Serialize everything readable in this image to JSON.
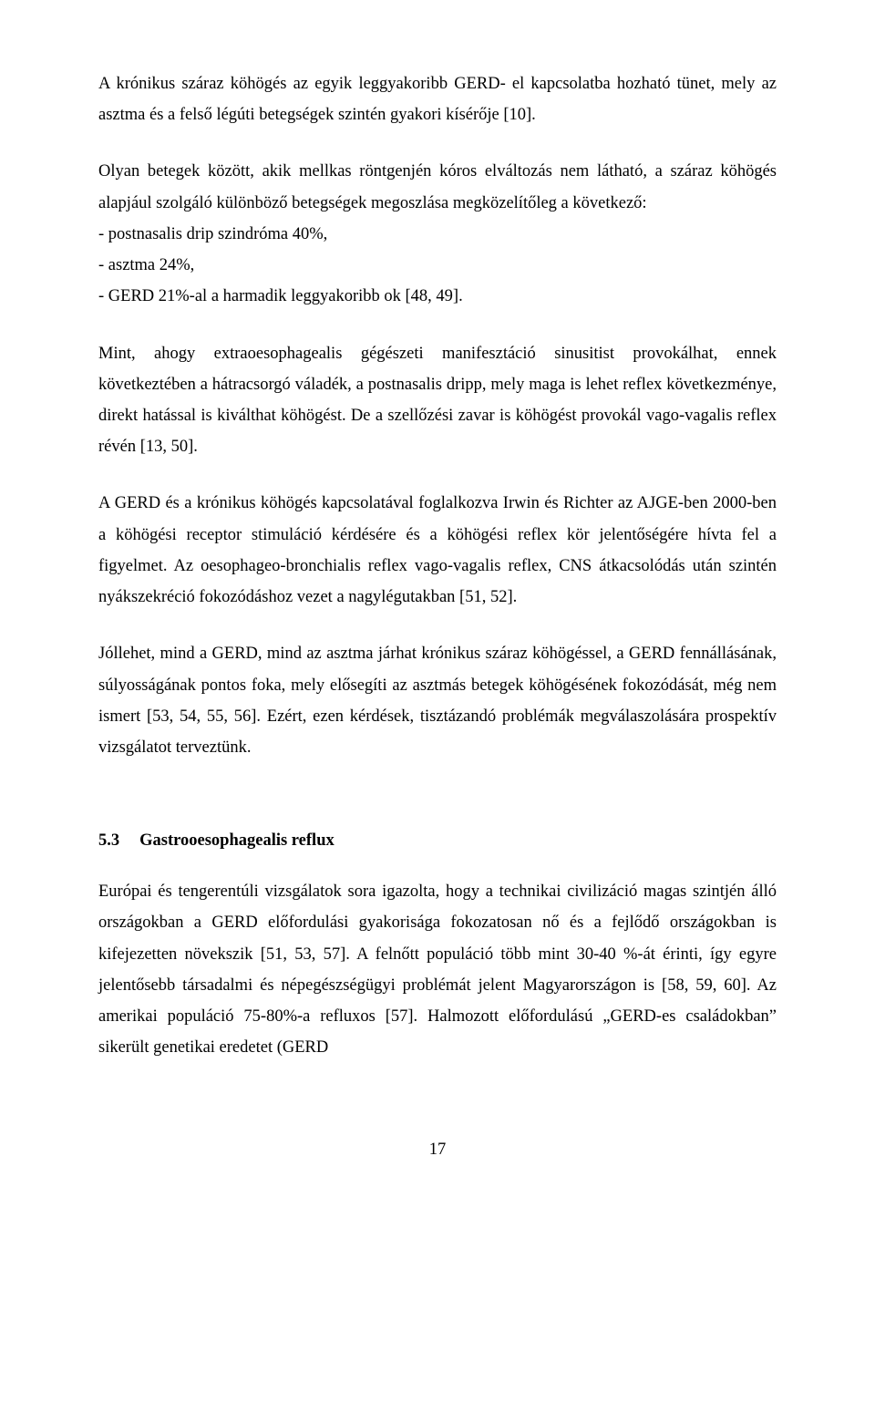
{
  "paragraphs": {
    "p1": "A krónikus száraz köhögés az egyik leggyakoribb GERD- el kapcsolatba hozható tünet, mely az asztma és a felső légúti betegségek szintén gyakori kísérője [10].",
    "list_intro": "Olyan betegek között, akik mellkas röntgenjén kóros elváltozás nem látható, a száraz köhögés alapjául szolgáló különböző betegségek megoszlása megközelítőleg a következő:",
    "list_items": [
      "- postnasalis drip szindróma 40%,",
      "- asztma 24%,",
      "- GERD 21%-al a harmadik leggyakoribb ok [48, 49]."
    ],
    "p2": "Mint, ahogy extraoesophagealis gégészeti manifesztáció sinusitist provokálhat, ennek következtében a hátracsorgó váladék, a postnasalis dripp, mely maga is lehet reflex következménye, direkt hatással is kiválthat köhögést. De a szellőzési zavar is köhögést provokál vago-vagalis reflex révén [13, 50].",
    "p3": "A GERD és a krónikus köhögés kapcsolatával foglalkozva Irwin és Richter az AJGE-ben 2000-ben a köhögési receptor stimuláció kérdésére és a köhögési reflex kör jelentőségére hívta fel a figyelmet. Az oesophageo-bronchialis reflex vago-vagalis reflex, CNS átkacsolódás után szintén nyákszekréció fokozódáshoz vezet a nagylégutakban [51, 52].",
    "p4": "Jóllehet, mind a GERD, mind az asztma járhat krónikus száraz köhögéssel, a GERD fennállásának, súlyosságának pontos foka, mely elősegíti az asztmás betegek köhögésének fokozódását, még nem ismert [53, 54, 55, 56]. Ezért, ezen kérdések, tisztázandó problémák megválaszolására prospektív vizsgálatot terveztünk.",
    "p5": "Európai és tengerentúli vizsgálatok sora igazolta, hogy a technikai civilizáció magas szintjén álló országokban a GERD előfordulási gyakorisága fokozatosan nő és a fejlődő országokban is kifejezetten növekszik [51, 53, 57]. A felnőtt populáció több mint 30-40 %-át érinti, így egyre jelentősebb társadalmi és népegészségügyi problémát jelent Magyarországon is [58, 59, 60]. Az amerikai populáció 75-80%-a refluxos [57]. Halmozott előfordulású „GERD-es családokban” sikerült genetikai eredetet (GERD"
  },
  "section": {
    "number": "5.3",
    "title": "Gastrooesophagealis reflux"
  },
  "page_number": "17"
}
